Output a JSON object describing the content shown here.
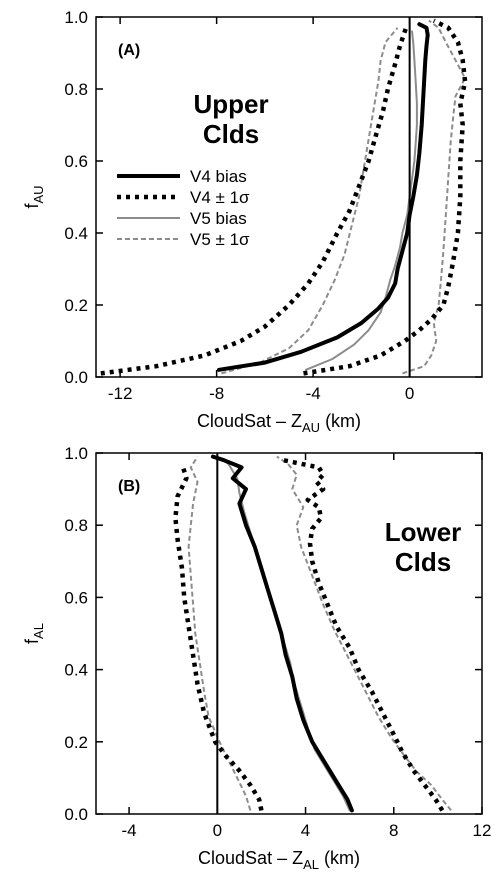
{
  "chart_data": [
    {
      "type": "line",
      "panel_label": "(A)",
      "annotation": [
        "Upper",
        "Clds"
      ],
      "xlabel": {
        "main": "CloudSat – Z",
        "sub": "AU",
        "unit": " (km)"
      },
      "ylabel": {
        "main": "f",
        "sub": "AU"
      },
      "xlim": [
        -13,
        3
      ],
      "ylim": [
        0,
        1
      ],
      "xticks": [
        "-12",
        "-8",
        "-4",
        "0"
      ],
      "yticks": [
        "0.0",
        "0.2",
        "0.4",
        "0.6",
        "0.8",
        "1.0"
      ],
      "legend_position": "center-left",
      "series": [
        {
          "name": "V4 bias",
          "color": "#000000",
          "style": "solid-thick",
          "points": [
            [
              -7.9,
              0.02
            ],
            [
              -6.0,
              0.04
            ],
            [
              -4.5,
              0.07
            ],
            [
              -3.0,
              0.11
            ],
            [
              -2.0,
              0.15
            ],
            [
              -1.3,
              0.19
            ],
            [
              -0.9,
              0.22
            ],
            [
              -0.6,
              0.26
            ],
            [
              -0.5,
              0.3
            ],
            [
              -0.3,
              0.35
            ],
            [
              -0.1,
              0.4
            ],
            [
              0.0,
              0.45
            ],
            [
              0.15,
              0.5
            ],
            [
              0.3,
              0.56
            ],
            [
              0.4,
              0.62
            ],
            [
              0.45,
              0.66
            ],
            [
              0.5,
              0.7
            ],
            [
              0.55,
              0.76
            ],
            [
              0.6,
              0.82
            ],
            [
              0.65,
              0.88
            ],
            [
              0.7,
              0.92
            ],
            [
              0.75,
              0.95
            ],
            [
              0.7,
              0.97
            ],
            [
              0.4,
              0.98
            ]
          ]
        },
        {
          "name": "V4 ± 1σ",
          "color": "#000000",
          "style": "dotted-thick",
          "points_low": [
            [
              -12.8,
              0.01
            ],
            [
              -10.5,
              0.03
            ],
            [
              -8.5,
              0.06
            ],
            [
              -7.0,
              0.1
            ],
            [
              -6.0,
              0.14
            ],
            [
              -5.0,
              0.2
            ],
            [
              -4.2,
              0.26
            ],
            [
              -3.6,
              0.32
            ],
            [
              -3.0,
              0.4
            ],
            [
              -2.5,
              0.46
            ],
            [
              -2.1,
              0.53
            ],
            [
              -1.7,
              0.6
            ],
            [
              -1.4,
              0.67
            ],
            [
              -1.1,
              0.74
            ],
            [
              -0.9,
              0.8
            ],
            [
              -0.6,
              0.87
            ],
            [
              -0.4,
              0.92
            ],
            [
              -0.2,
              0.96
            ],
            [
              -0.1,
              0.98
            ]
          ],
          "points_high": [
            [
              -4.4,
              0.01
            ],
            [
              -2.5,
              0.03
            ],
            [
              -1.2,
              0.06
            ],
            [
              -0.2,
              0.1
            ],
            [
              0.4,
              0.13
            ],
            [
              0.9,
              0.16
            ],
            [
              1.4,
              0.2
            ],
            [
              1.6,
              0.25
            ],
            [
              1.8,
              0.32
            ],
            [
              2.0,
              0.4
            ],
            [
              2.1,
              0.5
            ],
            [
              2.1,
              0.6
            ],
            [
              2.2,
              0.7
            ],
            [
              2.1,
              0.76
            ],
            [
              2.3,
              0.82
            ],
            [
              2.2,
              0.88
            ],
            [
              2.0,
              0.93
            ],
            [
              1.6,
              0.97
            ],
            [
              1.0,
              0.99
            ]
          ]
        },
        {
          "name": "V5 bias",
          "color": "#8c8c8c",
          "style": "solid-thin",
          "points": [
            [
              -4.3,
              0.02
            ],
            [
              -3.2,
              0.05
            ],
            [
              -2.3,
              0.09
            ],
            [
              -1.7,
              0.13
            ],
            [
              -1.2,
              0.18
            ],
            [
              -1.0,
              0.22
            ],
            [
              -0.8,
              0.27
            ],
            [
              -0.6,
              0.31
            ],
            [
              -0.4,
              0.36
            ],
            [
              -0.3,
              0.4
            ],
            [
              -0.1,
              0.45
            ],
            [
              0.0,
              0.5
            ],
            [
              0.1,
              0.55
            ],
            [
              0.2,
              0.6
            ],
            [
              0.25,
              0.65
            ],
            [
              0.3,
              0.7
            ],
            [
              0.3,
              0.76
            ],
            [
              0.25,
              0.82
            ],
            [
              0.2,
              0.88
            ],
            [
              0.15,
              0.93
            ],
            [
              0.1,
              0.96
            ]
          ]
        },
        {
          "name": "V5 ± 1σ",
          "color": "#8c8c8c",
          "style": "dashed-thin",
          "points_low": [
            [
              -7.8,
              0.01
            ],
            [
              -6.2,
              0.04
            ],
            [
              -5.0,
              0.08
            ],
            [
              -4.2,
              0.13
            ],
            [
              -3.6,
              0.2
            ],
            [
              -3.1,
              0.27
            ],
            [
              -2.7,
              0.34
            ],
            [
              -2.4,
              0.42
            ],
            [
              -2.1,
              0.5
            ],
            [
              -1.9,
              0.58
            ],
            [
              -1.7,
              0.66
            ],
            [
              -1.5,
              0.74
            ],
            [
              -1.3,
              0.82
            ],
            [
              -1.2,
              0.88
            ],
            [
              -1.0,
              0.93
            ],
            [
              -0.5,
              0.97
            ]
          ],
          "points_high": [
            [
              -0.3,
              0.01
            ],
            [
              0.6,
              0.03
            ],
            [
              0.9,
              0.06
            ],
            [
              1.1,
              0.1
            ],
            [
              1.0,
              0.15
            ],
            [
              1.2,
              0.2
            ],
            [
              1.3,
              0.27
            ],
            [
              1.4,
              0.35
            ],
            [
              1.5,
              0.45
            ],
            [
              1.6,
              0.55
            ],
            [
              1.7,
              0.65
            ],
            [
              1.8,
              0.72
            ],
            [
              1.9,
              0.78
            ],
            [
              2.3,
              0.83
            ],
            [
              1.9,
              0.88
            ],
            [
              1.5,
              0.93
            ],
            [
              1.2,
              0.97
            ],
            [
              0.8,
              0.99
            ]
          ]
        }
      ]
    },
    {
      "type": "line",
      "panel_label": "(B)",
      "annotation": [
        "Lower",
        "Clds"
      ],
      "xlabel": {
        "main": "CloudSat – Z",
        "sub": "AL",
        "unit": " (km)"
      },
      "ylabel": {
        "main": "f",
        "sub": "AL"
      },
      "xlim": [
        -5.5,
        12
      ],
      "ylim": [
        0,
        1
      ],
      "xticks": [
        "-4",
        "0",
        "4",
        "8",
        "12"
      ],
      "yticks": [
        "0.0",
        "0.2",
        "0.4",
        "0.6",
        "0.8",
        "1.0"
      ],
      "series": [
        {
          "name": "V4 bias",
          "color": "#000000",
          "style": "solid-thick",
          "points": [
            [
              6.1,
              0.01
            ],
            [
              5.9,
              0.04
            ],
            [
              5.6,
              0.07
            ],
            [
              5.2,
              0.11
            ],
            [
              4.8,
              0.15
            ],
            [
              4.3,
              0.2
            ],
            [
              3.9,
              0.26
            ],
            [
              3.6,
              0.32
            ],
            [
              3.4,
              0.38
            ],
            [
              3.1,
              0.44
            ],
            [
              2.9,
              0.5
            ],
            [
              2.6,
              0.56
            ],
            [
              2.3,
              0.62
            ],
            [
              2.0,
              0.68
            ],
            [
              1.7,
              0.74
            ],
            [
              1.3,
              0.8
            ],
            [
              1.0,
              0.86
            ],
            [
              1.3,
              0.9
            ],
            [
              0.7,
              0.93
            ],
            [
              1.1,
              0.96
            ],
            [
              0.3,
              0.98
            ],
            [
              -0.2,
              0.99
            ]
          ]
        },
        {
          "name": "V4 ± 1σ",
          "color": "#000000",
          "style": "dotted-thick",
          "points_low": [
            [
              2.0,
              0.01
            ],
            [
              1.9,
              0.04
            ],
            [
              1.5,
              0.08
            ],
            [
              1.0,
              0.12
            ],
            [
              0.4,
              0.16
            ],
            [
              -0.1,
              0.2
            ],
            [
              -0.6,
              0.28
            ],
            [
              -0.9,
              0.36
            ],
            [
              -1.1,
              0.44
            ],
            [
              -1.3,
              0.52
            ],
            [
              -1.5,
              0.6
            ],
            [
              -1.6,
              0.68
            ],
            [
              -1.8,
              0.76
            ],
            [
              -1.9,
              0.82
            ],
            [
              -1.8,
              0.88
            ],
            [
              -1.4,
              0.93
            ],
            [
              -1.6,
              0.97
            ]
          ],
          "points_high": [
            [
              10.2,
              0.01
            ],
            [
              9.9,
              0.04
            ],
            [
              9.4,
              0.08
            ],
            [
              8.9,
              0.12
            ],
            [
              8.4,
              0.17
            ],
            [
              8.0,
              0.22
            ],
            [
              7.5,
              0.28
            ],
            [
              7.0,
              0.34
            ],
            [
              6.4,
              0.4
            ],
            [
              6.0,
              0.46
            ],
            [
              5.4,
              0.52
            ],
            [
              5.0,
              0.58
            ],
            [
              4.6,
              0.64
            ],
            [
              4.3,
              0.7
            ],
            [
              4.2,
              0.75
            ],
            [
              4.3,
              0.79
            ],
            [
              4.7,
              0.82
            ],
            [
              4.6,
              0.85
            ],
            [
              4.1,
              0.87
            ],
            [
              4.8,
              0.9
            ],
            [
              4.5,
              0.92
            ],
            [
              4.8,
              0.94
            ],
            [
              4.6,
              0.96
            ],
            [
              3.0,
              0.98
            ]
          ]
        },
        {
          "name": "V5 bias",
          "color": "#8c8c8c",
          "style": "solid-thin",
          "points": [
            [
              6.0,
              0.01
            ],
            [
              5.7,
              0.05
            ],
            [
              5.3,
              0.09
            ],
            [
              4.9,
              0.13
            ],
            [
              4.4,
              0.18
            ],
            [
              4.1,
              0.24
            ],
            [
              3.8,
              0.3
            ],
            [
              3.5,
              0.36
            ],
            [
              3.3,
              0.42
            ],
            [
              3.0,
              0.48
            ],
            [
              2.7,
              0.54
            ],
            [
              2.4,
              0.6
            ],
            [
              2.1,
              0.66
            ],
            [
              1.8,
              0.72
            ],
            [
              1.5,
              0.78
            ],
            [
              1.2,
              0.84
            ],
            [
              1.0,
              0.89
            ],
            [
              0.9,
              0.93
            ],
            [
              0.5,
              0.97
            ],
            [
              0.0,
              0.99
            ]
          ]
        },
        {
          "name": "V5 ± 1σ",
          "color": "#8c8c8c",
          "style": "dashed-thin",
          "points_low": [
            [
              1.5,
              0.01
            ],
            [
              1.3,
              0.05
            ],
            [
              0.9,
              0.1
            ],
            [
              0.5,
              0.15
            ],
            [
              0.1,
              0.2
            ],
            [
              -0.4,
              0.27
            ],
            [
              -0.6,
              0.34
            ],
            [
              -0.8,
              0.42
            ],
            [
              -1.0,
              0.5
            ],
            [
              -1.1,
              0.58
            ],
            [
              -1.2,
              0.66
            ],
            [
              -1.3,
              0.74
            ],
            [
              -1.2,
              0.8
            ],
            [
              -1.1,
              0.86
            ],
            [
              -0.9,
              0.92
            ],
            [
              -1.2,
              0.96
            ],
            [
              -0.9,
              0.99
            ]
          ],
          "points_high": [
            [
              10.6,
              0.01
            ],
            [
              10.2,
              0.04
            ],
            [
              9.7,
              0.08
            ],
            [
              9.0,
              0.12
            ],
            [
              8.5,
              0.16
            ],
            [
              7.9,
              0.21
            ],
            [
              7.3,
              0.27
            ],
            [
              6.8,
              0.33
            ],
            [
              6.3,
              0.39
            ],
            [
              5.8,
              0.45
            ],
            [
              5.3,
              0.51
            ],
            [
              4.8,
              0.58
            ],
            [
              4.3,
              0.66
            ],
            [
              3.8,
              0.74
            ],
            [
              3.6,
              0.8
            ],
            [
              3.9,
              0.85
            ],
            [
              3.4,
              0.9
            ],
            [
              3.6,
              0.94
            ],
            [
              3.2,
              0.97
            ],
            [
              2.7,
              0.99
            ]
          ]
        }
      ]
    }
  ]
}
